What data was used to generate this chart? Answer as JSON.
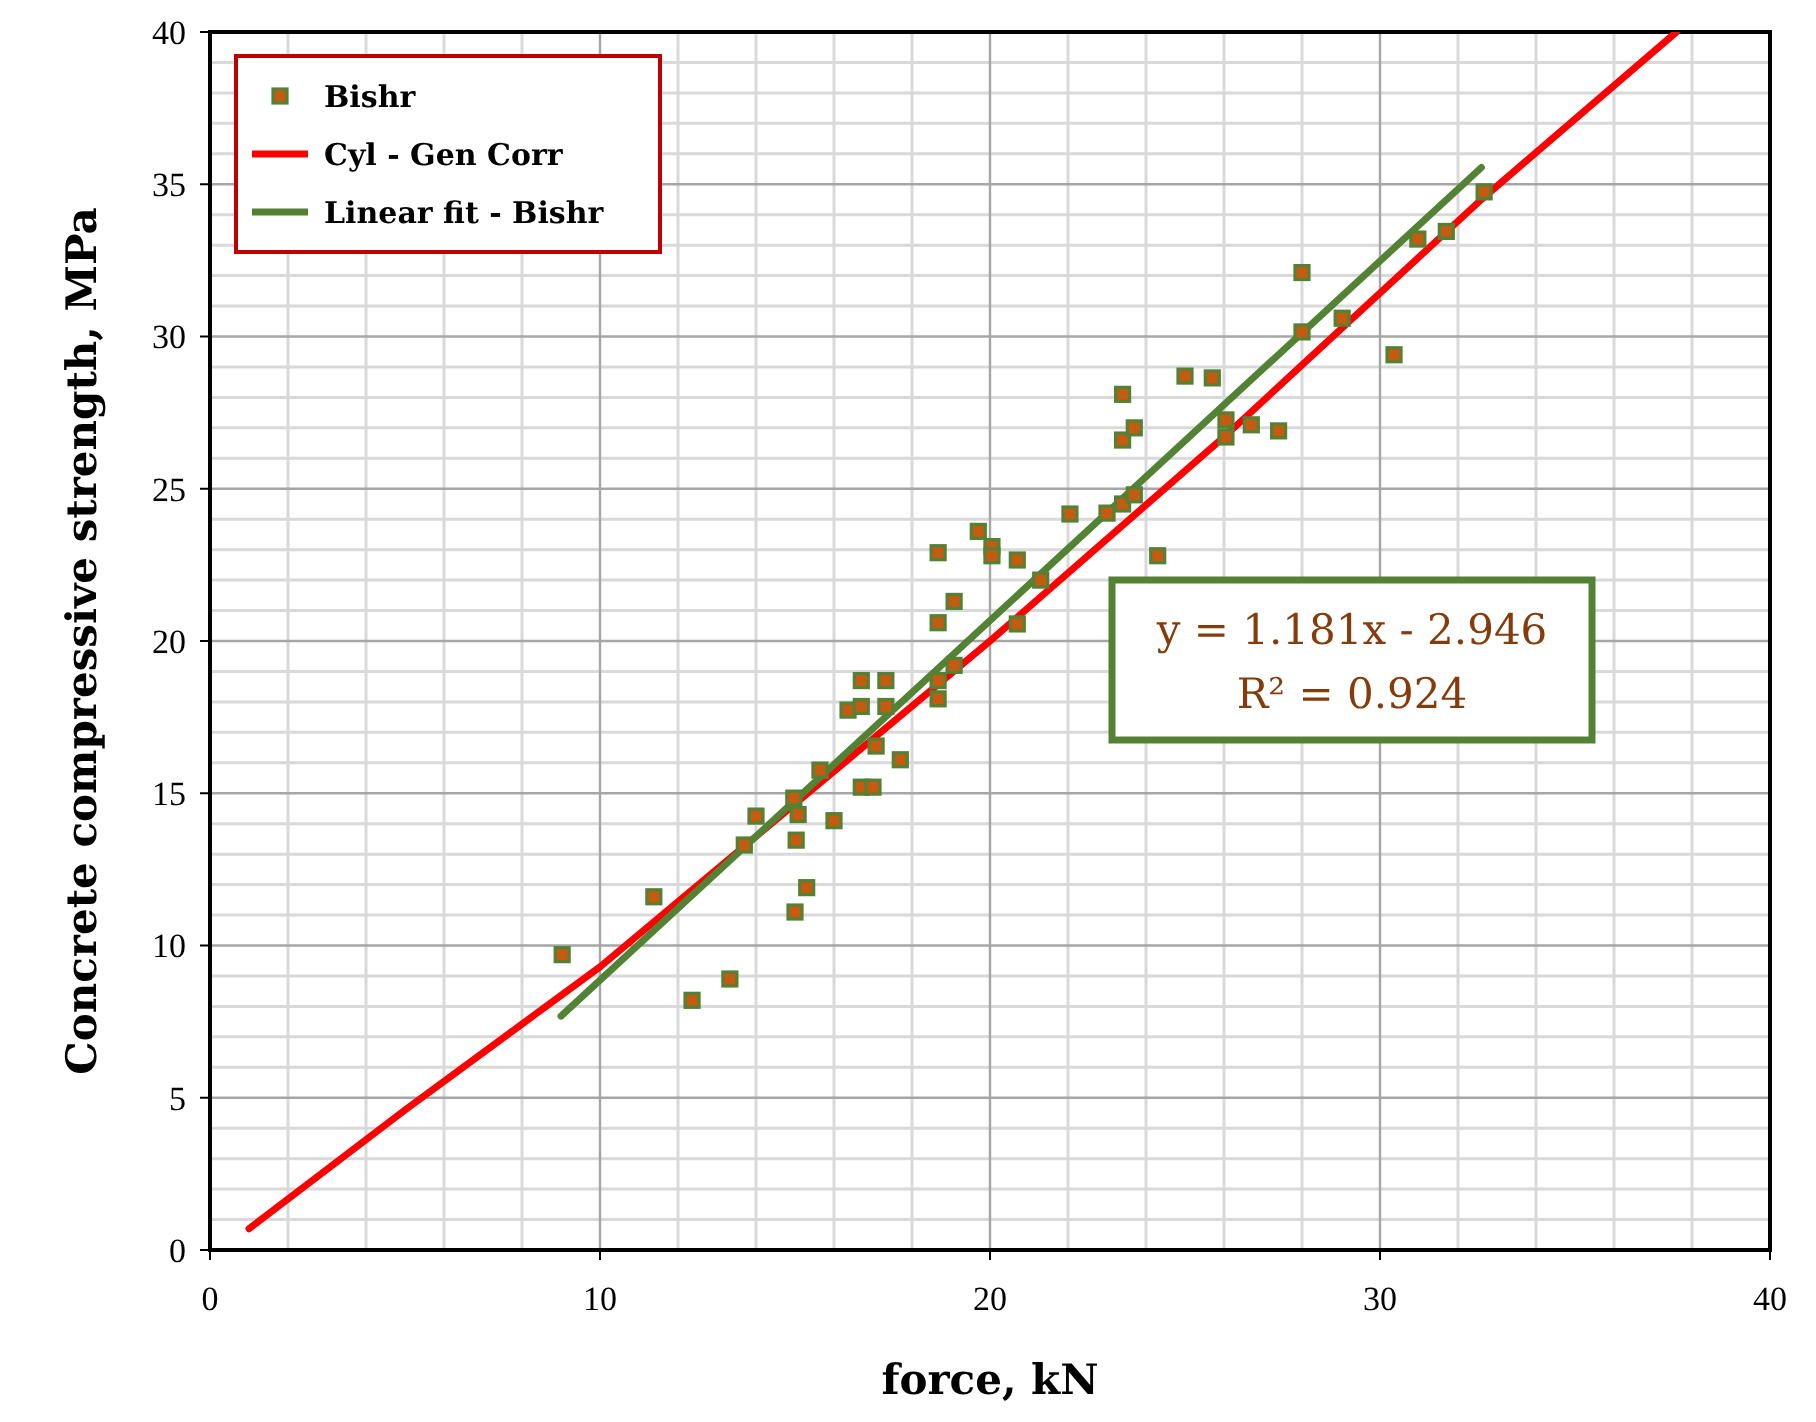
{
  "chart_data": {
    "type": "scatter",
    "xlabel": "force, kN",
    "ylabel": "Concrete compressive strength, MPa",
    "xlim": [
      0,
      40
    ],
    "ylim": [
      0,
      40
    ],
    "xticks": [
      0,
      10,
      20,
      30,
      40
    ],
    "yticks": [
      0,
      5,
      10,
      15,
      20,
      25,
      30,
      35,
      40
    ],
    "grid": true,
    "legend": "top left",
    "annotations": [
      "y = 1.181x - 2.946",
      "R² = 0.924"
    ],
    "series": [
      {
        "name": "Bishr",
        "marker": "square",
        "color": "#c55a11",
        "x": [
          9.03,
          11.38,
          12.36,
          13.33,
          13.7,
          14.0,
          15.03,
          14.97,
          15.08,
          15.3,
          15.0,
          16.0,
          15.64,
          16.7,
          17.0,
          17.7,
          17.08,
          16.36,
          16.7,
          16.7,
          17.33,
          17.33,
          18.67,
          19.08,
          18.67,
          18.67,
          19.08,
          18.67,
          19.7,
          20.05,
          20.05,
          20.7,
          21.3,
          20.7,
          22.05,
          23.0,
          23.4,
          23.7,
          24.3,
          23.4,
          23.4,
          23.7,
          25.0,
          25.7,
          26.05,
          26.05,
          26.7,
          27.4,
          28.0,
          28.0,
          29.03,
          30.36,
          30.97,
          31.7,
          32.67
        ],
        "values": [
          9.7,
          11.6,
          8.2,
          8.9,
          13.3,
          14.25,
          13.46,
          14.84,
          14.3,
          11.9,
          11.1,
          14.1,
          15.76,
          15.2,
          15.2,
          16.1,
          16.55,
          17.73,
          17.85,
          18.7,
          18.7,
          17.85,
          20.6,
          21.3,
          18.1,
          18.7,
          19.2,
          22.9,
          23.6,
          23.1,
          22.8,
          22.66,
          22.0,
          20.56,
          24.17,
          24.2,
          24.5,
          24.8,
          22.8,
          28.1,
          26.6,
          27.0,
          28.7,
          28.64,
          27.26,
          26.7,
          27.1,
          26.9,
          32.1,
          30.15,
          30.6,
          29.4,
          33.2,
          33.45,
          34.75
        ]
      },
      {
        "name": "Cyl - Gen Corr",
        "type": "line",
        "color": "#ff0000",
        "x": [
          1,
          5,
          10,
          20,
          26,
          32.6,
          37.6
        ],
        "values": [
          0.7,
          4.6,
          9.3,
          20.0,
          26.7,
          34.5,
          40
        ]
      },
      {
        "name": "Linear fit - Bishr",
        "type": "line",
        "color": "#548235",
        "x": [
          9,
          32.6
        ],
        "values": [
          7.68,
          35.55
        ]
      }
    ]
  }
}
